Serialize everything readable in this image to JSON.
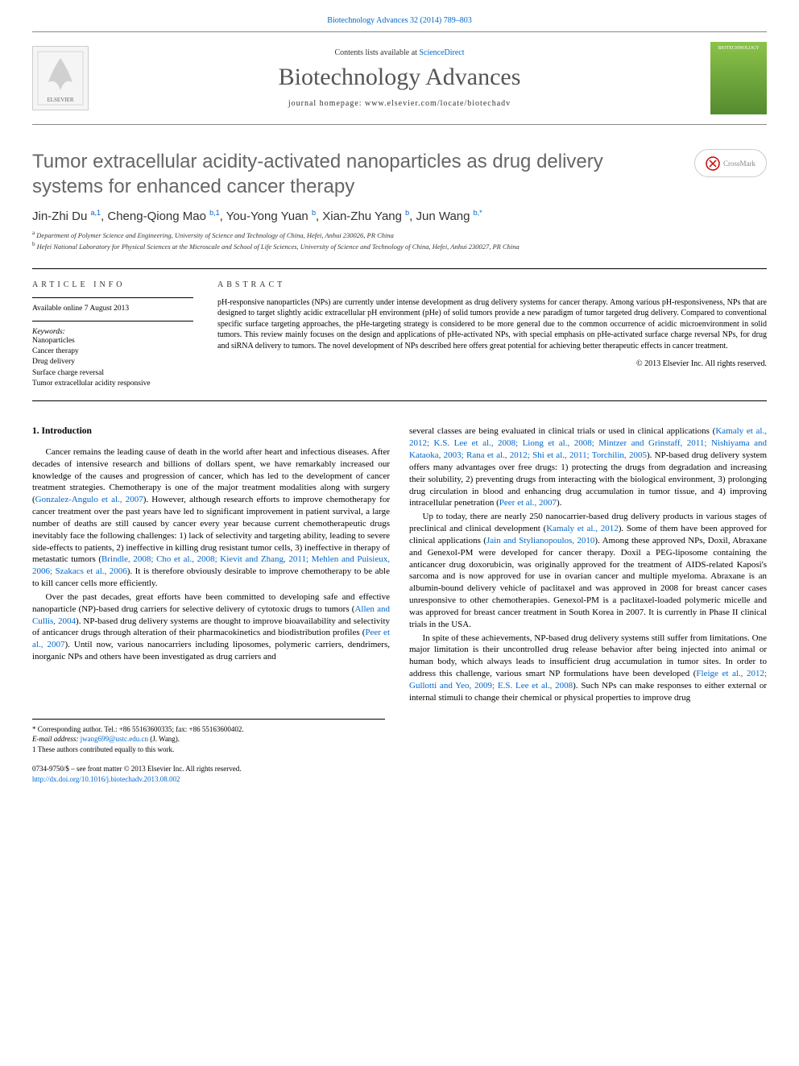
{
  "header": {
    "citation": "Biotechnology Advances 32 (2014) 789–803",
    "sd_prefix": "Contents lists available at ",
    "sd_link": "ScienceDirect",
    "journal": "Biotechnology Advances",
    "homepage": "journal homepage: www.elsevier.com/locate/biotechadv",
    "publisher_badge": "ELSEVIER",
    "cover_badge": "BIOTECHNOLOGY"
  },
  "article": {
    "title": "Tumor extracellular acidity-activated nanoparticles as drug delivery systems for enhanced cancer therapy",
    "crossmark": "CrossMark",
    "authors_html": "Jin-Zhi Du <sup>a,1</sup>, Cheng-Qiong Mao <sup>b,1</sup>, You-Yong Yuan <sup>b</sup>, Xian-Zhu Yang <sup>b</sup>, Jun Wang <sup>b,*</sup>",
    "affiliations": [
      "a Department of Polymer Science and Engineering, University of Science and Technology of China, Hefei, Anhui 230026, PR China",
      "b Hefei National Laboratory for Physical Sciences at the Microscale and School of Life Sciences, University of Science and Technology of China, Hefei, Anhui 230027, PR China"
    ]
  },
  "info": {
    "heading": "ARTICLE INFO",
    "available": "Available online 7 August 2013",
    "keywords_label": "Keywords:",
    "keywords": [
      "Nanoparticles",
      "Cancer therapy",
      "Drug delivery",
      "Surface charge reversal",
      "Tumor extracellular acidity responsive"
    ]
  },
  "abstract": {
    "heading": "ABSTRACT",
    "text": "pH-responsive nanoparticles (NPs) are currently under intense development as drug delivery systems for cancer therapy. Among various pH-responsiveness, NPs that are designed to target slightly acidic extracellular pH environment (pHe) of solid tumors provide a new paradigm of tumor targeted drug delivery. Compared to conventional specific surface targeting approaches, the pHe-targeting strategy is considered to be more general due to the common occurrence of acidic microenvironment in solid tumors. This review mainly focuses on the design and applications of pHe-activated NPs, with special emphasis on pHe-activated surface charge reversal NPs, for drug and siRNA delivery to tumors. The novel development of NPs described here offers great potential for achieving better therapeutic effects in cancer treatment.",
    "copyright": "© 2013 Elsevier Inc. All rights reserved."
  },
  "body": {
    "section_heading": "1. Introduction",
    "p1": "Cancer remains the leading cause of death in the world after heart and infectious diseases. After decades of intensive research and billions of dollars spent, we have remarkably increased our knowledge of the causes and progression of cancer, which has led to the development of cancer treatment strategies. Chemotherapy is one of the major treatment modalities along with surgery (Gonzalez-Angulo et al., 2007). However, although research efforts to improve chemotherapy for cancer treatment over the past years have led to significant improvement in patient survival, a large number of deaths are still caused by cancer every year because current chemotherapeutic drugs inevitably face the following challenges: 1) lack of selectivity and targeting ability, leading to severe side-effects to patients, 2) ineffective in killing drug resistant tumor cells, 3) ineffective in therapy of metastatic tumors (Brindle, 2008; Cho et al., 2008; Kievit and Zhang, 2011; Mehlen and Puisieux, 2006; Szakacs et al., 2006). It is therefore obviously desirable to improve chemotherapy to be able to kill cancer cells more efficiently.",
    "p2": "Over the past decades, great efforts have been committed to developing safe and effective nanoparticle (NP)-based drug carriers for selective delivery of cytotoxic drugs to tumors (Allen and Cullis, 2004). NP-based drug delivery systems are thought to improve bioavailability and selectivity of anticancer drugs through alteration of their pharmacokinetics and biodistribution profiles (Peer et al., 2007). Until now, various nanocarriers including liposomes, polymeric carriers, dendrimers, inorganic NPs and others have been investigated as drug carriers and",
    "p3": "several classes are being evaluated in clinical trials or used in clinical applications (Kamaly et al., 2012; K.S. Lee et al., 2008; Liong et al., 2008; Mintzer and Grinstaff, 2011; Nishiyama and Kataoka, 2003; Rana et al., 2012; Shi et al., 2011; Torchilin, 2005). NP-based drug delivery system offers many advantages over free drugs: 1) protecting the drugs from degradation and increasing their solubility, 2) preventing drugs from interacting with the biological environment, 3) prolonging drug circulation in blood and enhancing drug accumulation in tumor tissue, and 4) improving intracellular penetration (Peer et al., 2007).",
    "p4": "Up to today, there are nearly 250 nanocarrier-based drug delivery products in various stages of preclinical and clinical development (Kamaly et al., 2012). Some of them have been approved for clinical applications (Jain and Stylianopoulos, 2010). Among these approved NPs, Doxil, Abraxane and Genexol-PM were developed for cancer therapy. Doxil a PEG-liposome containing the anticancer drug doxorubicin, was originally approved for the treatment of AIDS-related Kaposi's sarcoma and is now approved for use in ovarian cancer and multiple myeloma. Abraxane is an albumin-bound delivery vehicle of paclitaxel and was approved in 2008 for breast cancer cases unresponsive to other chemotherapies. Genexol-PM is a paclitaxel-loaded polymeric micelle and was approved for breast cancer treatment in South Korea in 2007. It is currently in Phase II clinical trials in the USA.",
    "p5": "In spite of these achievements, NP-based drug delivery systems still suffer from limitations. One major limitation is their uncontrolled drug release behavior after being injected into animal or human body, which always leads to insufficient drug accumulation in tumor sites. In order to address this challenge, various smart NP formulations have been developed (Fleige et al., 2012; Gullotti and Yeo, 2009; E.S. Lee et al., 2008). Such NPs can make responses to either external or internal stimuli to change their chemical or physical properties to improve drug"
  },
  "footer": {
    "corresponding": "* Corresponding author. Tel.: +86 55163600335; fax: +86 55163600402.",
    "email_label": "E-mail address: ",
    "email": "jwang699@ustc.edu.cn",
    "email_suffix": " (J. Wang).",
    "equal": "1 These authors contributed equally to this work.",
    "issn": "0734-9750/$ – see front matter © 2013 Elsevier Inc. All rights reserved.",
    "doi": "http://dx.doi.org/10.1016/j.biotechadv.2013.08.002"
  },
  "colors": {
    "link": "#0066cc",
    "title_gray": "#666666",
    "text": "#000000"
  }
}
